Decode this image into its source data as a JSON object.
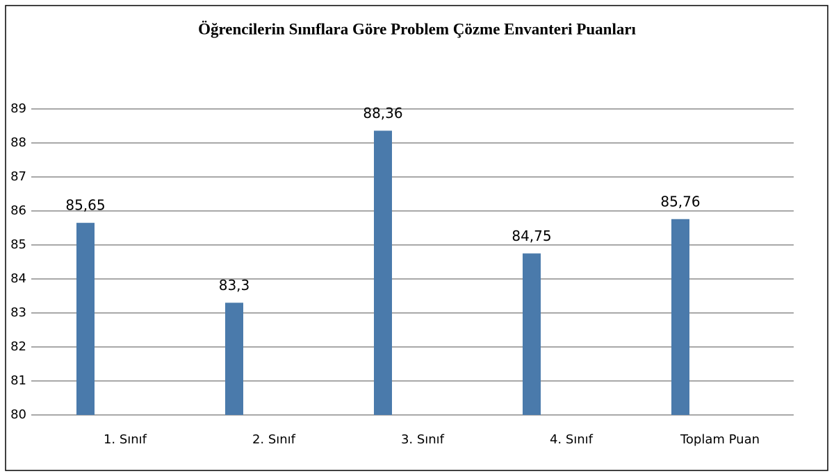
{
  "chart_data": {
    "type": "bar",
    "title": "Öğrencilerin Sınıflara Göre Problem Çözme Envanteri Puanları",
    "categories": [
      "1. Sınıf",
      "2. Sınıf",
      "3. Sınıf",
      "4. Sınıf",
      "Toplam Puan"
    ],
    "values": [
      85.65,
      83.3,
      88.36,
      84.75,
      85.76
    ],
    "value_labels": [
      "85,65",
      "83,3",
      "88,36",
      "84,75",
      "85,76"
    ],
    "color": "#4a7aab",
    "ylim": [
      80,
      89
    ],
    "yticks": [
      80,
      81,
      82,
      83,
      84,
      85,
      86,
      87,
      88,
      89
    ],
    "grid": true
  }
}
